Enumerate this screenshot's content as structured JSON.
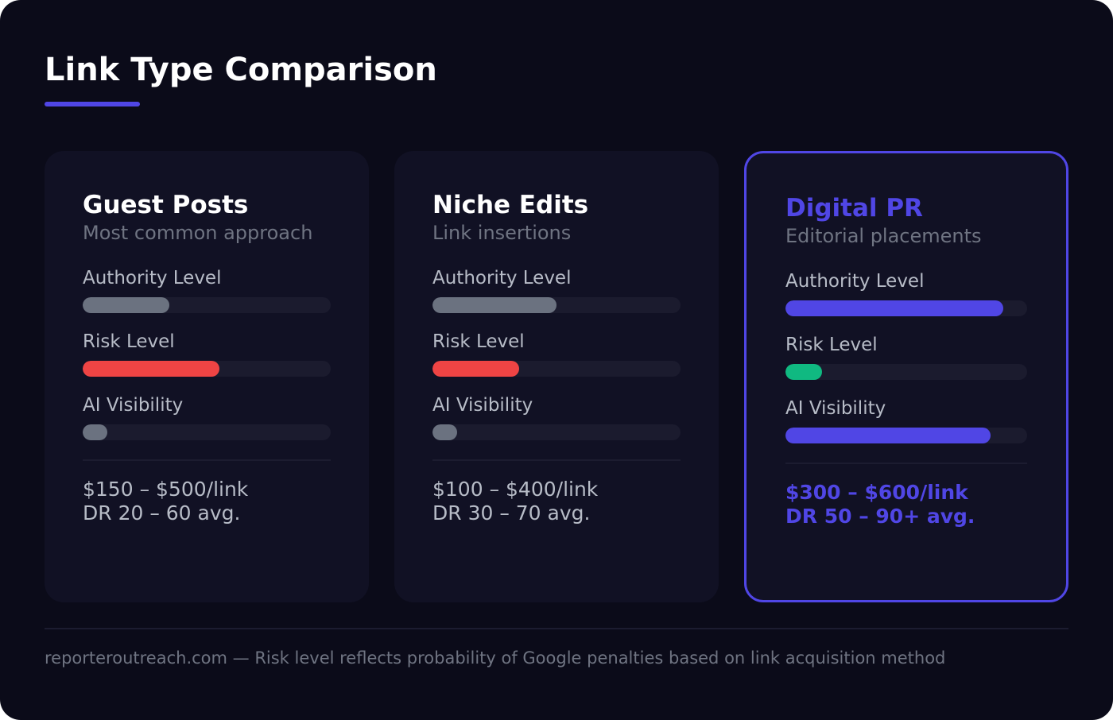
{
  "page": {
    "title": "Link Type Comparison",
    "accent_color": "#5046e5"
  },
  "cards": [
    {
      "title": "Guest Posts",
      "subtitle": "Most common approach",
      "highlighted": false,
      "metrics": [
        {
          "label": "Authority Level",
          "value_pct": 35,
          "color": "#6b7280"
        },
        {
          "label": "Risk Level",
          "value_pct": 55,
          "color": "#ef4444"
        },
        {
          "label": "AI Visibility",
          "value_pct": 10,
          "color": "#6b7280"
        }
      ],
      "price": "$150 – $500/link",
      "dr": "DR 20 – 60 avg."
    },
    {
      "title": "Niche Edits",
      "subtitle": "Link insertions",
      "highlighted": false,
      "metrics": [
        {
          "label": "Authority Level",
          "value_pct": 50,
          "color": "#6b7280"
        },
        {
          "label": "Risk Level",
          "value_pct": 35,
          "color": "#ef4444"
        },
        {
          "label": "AI Visibility",
          "value_pct": 10,
          "color": "#6b7280"
        }
      ],
      "price": "$100 – $400/link",
      "dr": "DR 30 – 70 avg."
    },
    {
      "title": "Digital PR",
      "subtitle": "Editorial placements",
      "highlighted": true,
      "metrics": [
        {
          "label": "Authority Level",
          "value_pct": 90,
          "color": "#5046e5"
        },
        {
          "label": "Risk Level",
          "value_pct": 15,
          "color": "#10b981"
        },
        {
          "label": "AI Visibility",
          "value_pct": 85,
          "color": "#5046e5"
        }
      ],
      "price": "$300 – $600/link",
      "dr": "DR 50 – 90+ avg."
    }
  ],
  "footer": {
    "note": "reporteroutreach.com — Risk level reflects probability of Google penalties based on link acquisition method"
  }
}
